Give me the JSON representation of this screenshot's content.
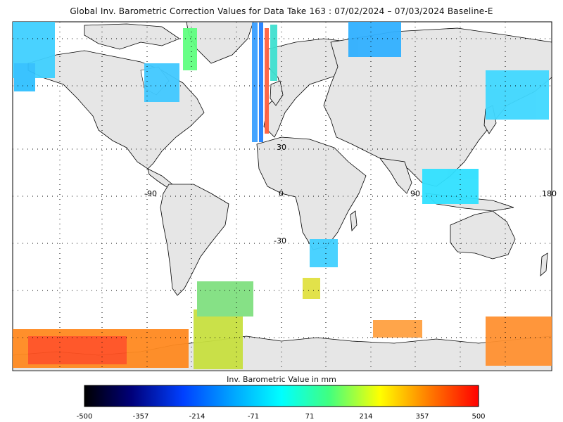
{
  "title": "Global Inv. Barometric Correction Values for Data Take 163 : 07/02/2024 – 07/03/2024 Baseline-E",
  "map": {
    "projection": "equirectangular",
    "grid": true,
    "grid_style": "dotted",
    "land_color": "#e6e6e6",
    "ocean_color": "#ffffff",
    "axis_labels": [
      {
        "text": "30",
        "lon": 0,
        "lat": 30
      },
      {
        "text": "-90",
        "lon": -90,
        "lat": 0
      },
      {
        "text": "0",
        "lon": 0,
        "lat": 0
      },
      {
        "text": "90",
        "lon": 90,
        "lat": 0
      },
      {
        "text": "180",
        "lon": 180,
        "lat": 0
      },
      {
        "text": "-30",
        "lon": 0,
        "lat": -30
      }
    ]
  },
  "colorbar": {
    "title": "Inv. Barometric Value in mm",
    "min": -500,
    "max": 500,
    "ticks": [
      "-500",
      "-357",
      "-214",
      "-71",
      "71",
      "214",
      "357",
      "500"
    ],
    "colors": [
      "#000000",
      "#00007a",
      "#0040ff",
      "#00a0ff",
      "#00ffff",
      "#40ff80",
      "#ffff00",
      "#ff8000",
      "#ff0000"
    ]
  }
}
